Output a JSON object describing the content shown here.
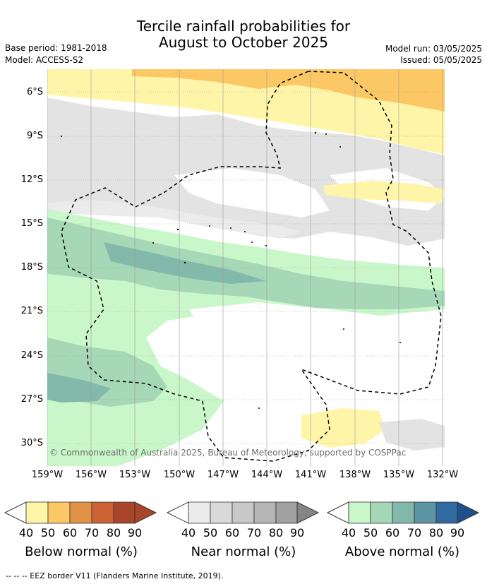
{
  "title_line1": "Tercile rainfall probabilities for",
  "title_line2": "August to October 2025",
  "base_period": "Base period: 1981-2018",
  "model": "Model: ACCESS-S2",
  "model_run": "Model run: 03/05/2025",
  "issued": "Issued: 05/05/2025",
  "lat_labels": [
    "6°S",
    "9°S",
    "12°S",
    "15°S",
    "18°S",
    "21°S",
    "24°S",
    "27°S",
    "30°S"
  ],
  "lon_labels": [
    "159°W",
    "156°W",
    "153°W",
    "150°W",
    "147°W",
    "144°W",
    "141°W",
    "138°W",
    "135°W",
    "132°W"
  ],
  "copyright": "© Commonwealth of Australia 2025, Bureau of Meteorology, supported by COSPPac",
  "colorbars": [
    {
      "label": "Below normal (%)",
      "ticks": [
        "40",
        "50",
        "60",
        "70",
        "80",
        "90"
      ],
      "colors": [
        "#fff5a8",
        "#fcc865",
        "#e09345",
        "#cc6334",
        "#a9452a",
        "#a9452a"
      ]
    },
    {
      "label": "Near normal (%)",
      "ticks": [
        "40",
        "50",
        "60",
        "70",
        "80",
        "90"
      ],
      "colors": [
        "#ebebeb",
        "#d9d9d9",
        "#c8c8c8",
        "#b5b5b5",
        "#a1a1a1",
        "#858585"
      ]
    },
    {
      "label": "Above normal (%)",
      "ticks": [
        "40",
        "50",
        "60",
        "70",
        "80",
        "90"
      ],
      "colors": [
        "#c9f7c9",
        "#a6d8b8",
        "#82b9aa",
        "#5c94a4",
        "#316aa0",
        "#1f4f8c"
      ]
    }
  ],
  "footnote": "--  --  -- EEZ border V11 (Flanders Marine Institute, 2019)."
}
